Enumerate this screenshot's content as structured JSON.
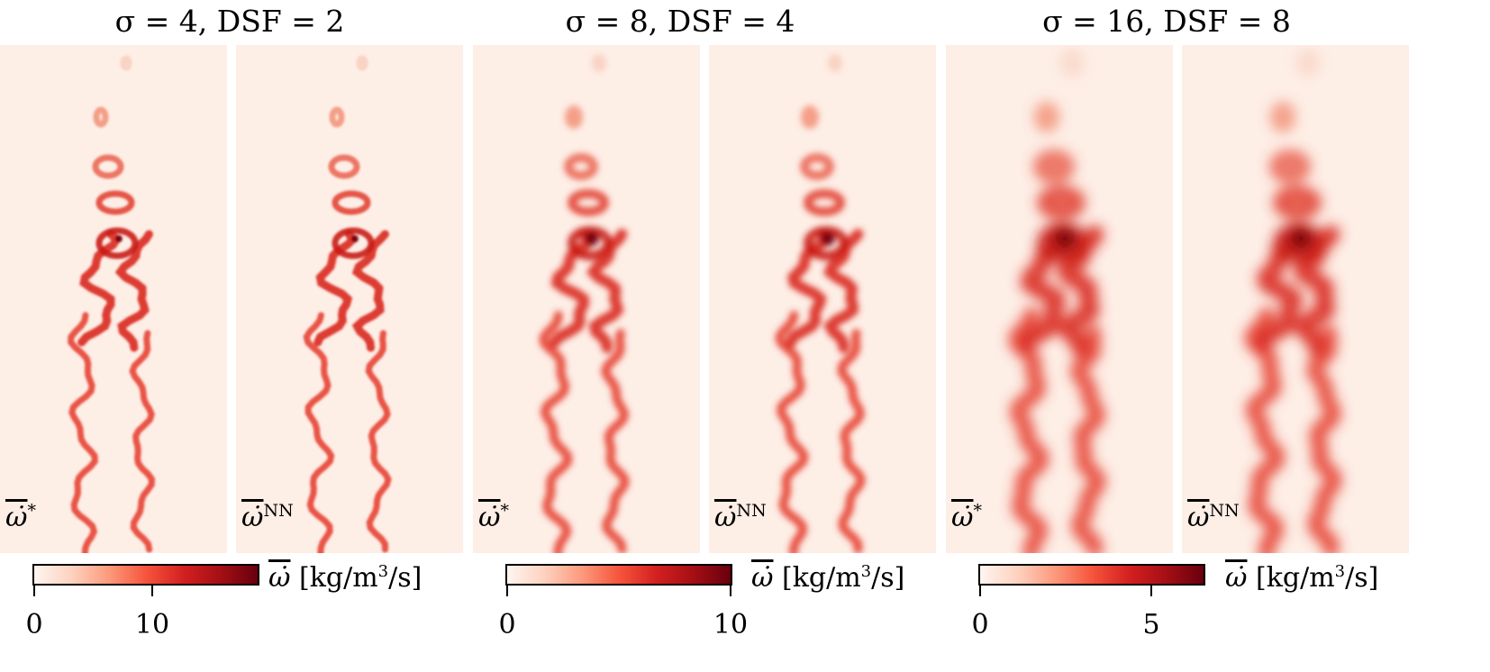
{
  "chart_data": {
    "type": "heatmap",
    "colormap": "Reds",
    "groups": [
      {
        "title_sigma": "σ = 4",
        "title_dsf": "DSF = 2",
        "sigma": 4,
        "dsf": 2,
        "panels": [
          {
            "label_sym": "ω̇",
            "label_sup": "*"
          },
          {
            "label_sym": "ω̇",
            "label_sup": "NN"
          }
        ],
        "colorbar": {
          "label_sym": "ω̇",
          "label_unit_pre": " [kg/m",
          "label_unit_sup": "3",
          "label_unit_post": "/s]",
          "ticks": [
            "0",
            "10"
          ],
          "tick_values": [
            0,
            10
          ],
          "range": [
            0,
            18
          ]
        }
      },
      {
        "title_sigma": "σ = 8",
        "title_dsf": "DSF = 4",
        "sigma": 8,
        "dsf": 4,
        "panels": [
          {
            "label_sym": "ω̇",
            "label_sup": "*"
          },
          {
            "label_sym": "ω̇",
            "label_sup": "NN"
          }
        ],
        "colorbar": {
          "label_sym": "ω̇",
          "label_unit_pre": " [kg/m",
          "label_unit_sup": "3",
          "label_unit_post": "/s]",
          "ticks": [
            "0",
            "10"
          ],
          "tick_values": [
            0,
            10
          ],
          "range": [
            0,
            10
          ]
        }
      },
      {
        "title_sigma": "σ = 16",
        "title_dsf": "DSF = 8",
        "sigma": 16,
        "dsf": 8,
        "panels": [
          {
            "label_sym": "ω̇",
            "label_sup": "*"
          },
          {
            "label_sym": "ω̇",
            "label_sup": "NN"
          }
        ],
        "colorbar": {
          "label_sym": "ω̇",
          "label_unit_pre": " [kg/m",
          "label_unit_sup": "3",
          "label_unit_post": "/s]",
          "ticks": [
            "0",
            "5"
          ],
          "tick_values": [
            0,
            5
          ],
          "range": [
            0,
            6.5
          ]
        }
      }
    ]
  }
}
